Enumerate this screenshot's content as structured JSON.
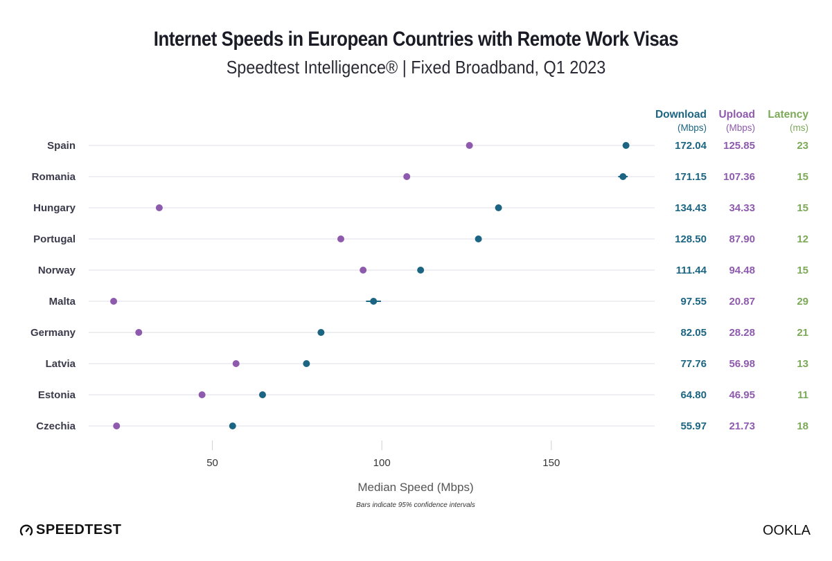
{
  "chart_data": {
    "type": "scatter",
    "subtype": "dot-plot with confidence intervals",
    "title": "Internet Speeds in European Countries with Remote Work Visas",
    "subtitle": "Speedtest Intelligence® | Fixed Broadband, Q1 2023",
    "xlabel": "Median Speed (Mbps)",
    "note": "Bars indicate 95% confidence intervals",
    "xlim": [
      13.5,
      180.5
    ],
    "xticks": [
      50,
      100,
      150
    ],
    "grid": true,
    "categories": [
      "Spain",
      "Romania",
      "Hungary",
      "Portugal",
      "Norway",
      "Malta",
      "Germany",
      "Latvia",
      "Estonia",
      "Czechia"
    ],
    "series": [
      {
        "name": "Download",
        "unit": "(Mbps)",
        "color": "#1b6583",
        "values": [
          172.04,
          171.15,
          134.43,
          128.5,
          111.44,
          97.55,
          82.05,
          77.76,
          64.8,
          55.97
        ],
        "labels": [
          "172.04",
          "171.15",
          "134.43",
          "128.50",
          "111.44",
          "97.55",
          "82.05",
          "77.76",
          "64.80",
          "55.97"
        ],
        "ci_halfwidth": [
          0.6,
          1.4,
          1.0,
          0.6,
          0.5,
          2.2,
          0.5,
          0.4,
          0.5,
          0.4
        ]
      },
      {
        "name": "Upload",
        "unit": "(Mbps)",
        "color": "#8e5aad",
        "values": [
          125.85,
          107.36,
          34.33,
          87.9,
          94.48,
          20.87,
          28.28,
          56.98,
          46.95,
          21.73
        ],
        "labels": [
          "125.85",
          "107.36",
          "34.33",
          "87.90",
          "94.48",
          "20.87",
          "28.28",
          "56.98",
          "46.95",
          "21.73"
        ]
      },
      {
        "name": "Latency",
        "unit": "(ms)",
        "color": "#7ba957",
        "values": [
          23,
          15,
          15,
          12,
          15,
          29,
          21,
          13,
          11,
          18
        ],
        "labels": [
          "23",
          "15",
          "15",
          "12",
          "15",
          "29",
          "21",
          "13",
          "11",
          "18"
        ]
      }
    ]
  },
  "branding": {
    "left_logo": "SPEEDTEST",
    "right_logo": "OOKLA"
  }
}
